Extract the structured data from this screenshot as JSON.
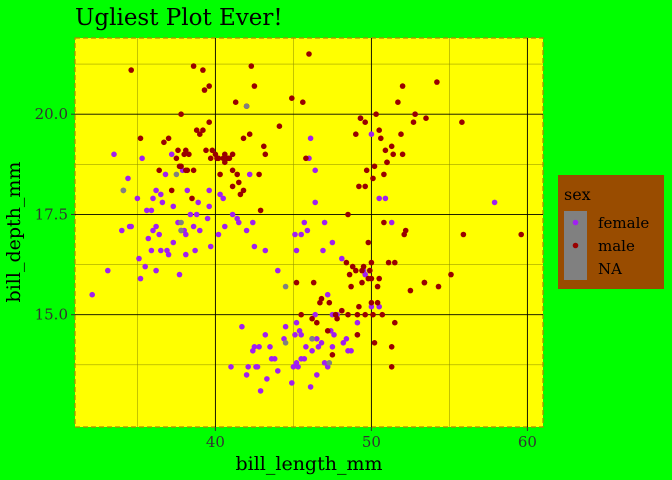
{
  "chart_data": {
    "type": "scatter",
    "title": "Ugliest Plot Ever!",
    "xlabel": "bill_length_mm",
    "ylabel": "bill_depth_mm",
    "xlim": [
      31,
      61
    ],
    "ylim": [
      12.2,
      21.9
    ],
    "x_ticks": [
      40,
      50,
      60
    ],
    "x_tick_labels": [
      "40",
      "50",
      "60"
    ],
    "y_ticks": [
      15.0,
      17.5,
      20.0
    ],
    "y_tick_labels": [
      "15.0",
      "17.5",
      "20.0"
    ],
    "grid": true,
    "legend": {
      "title": "sex",
      "placement": "right"
    },
    "colors": {
      "page_background": "#00ff00",
      "panel_background": "#ffff00",
      "panel_border": "#b08a00",
      "legend_background": "#994c00",
      "legend_key_background": "#808080",
      "grid_major": "#000000",
      "grid_minor": "#8a8a00"
    },
    "series": [
      {
        "name": "female",
        "color": "#a020f0",
        "points": [
          [
            32.1,
            15.5
          ],
          [
            33.1,
            16.1
          ],
          [
            33.5,
            19.0
          ],
          [
            34.0,
            17.1
          ],
          [
            34.1,
            18.1
          ],
          [
            34.4,
            18.4
          ],
          [
            34.5,
            17.2
          ],
          [
            34.6,
            17.2
          ],
          [
            35.0,
            17.9
          ],
          [
            35.1,
            16.4
          ],
          [
            35.2,
            15.9
          ],
          [
            35.3,
            18.9
          ],
          [
            35.5,
            16.2
          ],
          [
            35.6,
            17.6
          ],
          [
            35.7,
            16.9
          ],
          [
            35.9,
            16.6
          ],
          [
            35.9,
            17.6
          ],
          [
            36.0,
            17.1
          ],
          [
            36.0,
            17.9
          ],
          [
            36.2,
            16.1
          ],
          [
            36.2,
            17.2
          ],
          [
            36.2,
            18.1
          ],
          [
            36.4,
            17.0
          ],
          [
            36.5,
            16.6
          ],
          [
            36.5,
            18.0
          ],
          [
            36.6,
            17.8
          ],
          [
            36.8,
            18.5
          ],
          [
            36.9,
            16.6
          ],
          [
            37.0,
            16.5
          ],
          [
            37.2,
            19.0
          ],
          [
            37.3,
            16.8
          ],
          [
            37.3,
            17.7
          ],
          [
            37.6,
            17.3
          ],
          [
            37.7,
            16.0
          ],
          [
            37.8,
            17.1
          ],
          [
            37.9,
            18.6
          ],
          [
            38.0,
            17.1
          ],
          [
            38.1,
            16.5
          ],
          [
            38.1,
            17.0
          ],
          [
            38.2,
            18.1
          ],
          [
            38.4,
            17.5
          ],
          [
            38.6,
            17.2
          ],
          [
            38.7,
            16.6
          ],
          [
            38.8,
            17.5
          ],
          [
            38.9,
            17.8
          ],
          [
            39.0,
            17.1
          ],
          [
            39.5,
            17.4
          ],
          [
            39.6,
            17.7
          ],
          [
            39.6,
            18.1
          ],
          [
            39.7,
            16.7
          ],
          [
            40.2,
            17.0
          ],
          [
            40.3,
            18.0
          ],
          [
            40.5,
            17.9
          ],
          [
            40.6,
            17.2
          ],
          [
            41.1,
            17.5
          ],
          [
            41.4,
            17.4
          ],
          [
            41.5,
            17.3
          ],
          [
            42.0,
            17.1
          ],
          [
            42.2,
            18.5
          ],
          [
            42.4,
            17.3
          ],
          [
            42.5,
            16.7
          ],
          [
            42.8,
            14.2
          ],
          [
            41.0,
            13.7
          ],
          [
            41.7,
            14.7
          ],
          [
            42.0,
            13.5
          ],
          [
            42.1,
            13.7
          ],
          [
            42.4,
            14.1
          ],
          [
            42.5,
            14.2
          ],
          [
            42.6,
            13.7
          ],
          [
            42.7,
            13.7
          ],
          [
            42.9,
            13.1
          ],
          [
            43.2,
            14.5
          ],
          [
            43.3,
            13.4
          ],
          [
            43.5,
            14.2
          ],
          [
            43.6,
            13.9
          ],
          [
            43.8,
            13.9
          ],
          [
            44.0,
            13.6
          ],
          [
            44.4,
            14.4
          ],
          [
            44.5,
            14.7
          ],
          [
            44.9,
            13.3
          ],
          [
            45.0,
            13.7
          ],
          [
            45.1,
            14.5
          ],
          [
            45.2,
            13.8
          ],
          [
            45.2,
            14.8
          ],
          [
            45.3,
            13.7
          ],
          [
            45.4,
            14.6
          ],
          [
            45.5,
            13.9
          ],
          [
            45.5,
            14.5
          ],
          [
            45.7,
            13.9
          ],
          [
            45.8,
            14.2
          ],
          [
            46.1,
            13.2
          ],
          [
            46.2,
            14.1
          ],
          [
            46.2,
            14.4
          ],
          [
            46.4,
            15.0
          ],
          [
            46.5,
            13.5
          ],
          [
            46.5,
            14.4
          ],
          [
            46.6,
            14.2
          ],
          [
            46.8,
            14.3
          ],
          [
            47.0,
            13.8
          ],
          [
            47.2,
            13.7
          ],
          [
            47.2,
            15.5
          ],
          [
            47.4,
            14.6
          ],
          [
            47.5,
            14.2
          ],
          [
            47.5,
            15.0
          ],
          [
            47.6,
            14.5
          ],
          [
            47.8,
            15.0
          ],
          [
            48.1,
            15.1
          ],
          [
            48.2,
            14.3
          ],
          [
            48.4,
            14.4
          ],
          [
            48.5,
            14.1
          ],
          [
            48.7,
            14.1
          ],
          [
            49.1,
            14.5
          ],
          [
            49.1,
            14.8
          ],
          [
            49.5,
            16.1
          ],
          [
            49.6,
            16.0
          ],
          [
            49.9,
            16.1
          ],
          [
            50.0,
            15.2
          ],
          [
            50.5,
            15.2
          ],
          [
            44.0,
            16.1
          ],
          [
            45.1,
            17.0
          ],
          [
            45.5,
            17.0
          ],
          [
            46.4,
            17.8
          ],
          [
            46.9,
            16.6
          ],
          [
            47.0,
            17.3
          ],
          [
            47.5,
            16.8
          ],
          [
            48.1,
            16.4
          ],
          [
            49.3,
            19.9
          ],
          [
            50.0,
            19.5
          ],
          [
            50.5,
            17.9
          ],
          [
            50.9,
            17.9
          ],
          [
            51.3,
            17.3
          ],
          [
            52.8,
            20.0
          ],
          [
            46.0,
            18.9
          ],
          [
            45.7,
            17.3
          ],
          [
            45.9,
            17.1
          ],
          [
            46.4,
            18.6
          ],
          [
            43.2,
            16.6
          ],
          [
            57.9,
            17.8
          ],
          [
            46.1,
            19.4
          ],
          [
            45.2,
            16.6
          ]
        ]
      },
      {
        "name": "male",
        "color": "#990000",
        "points": [
          [
            34.6,
            21.1
          ],
          [
            35.2,
            19.4
          ],
          [
            36.4,
            18.6
          ],
          [
            37.0,
            19.4
          ],
          [
            37.5,
            18.9
          ],
          [
            37.8,
            20.0
          ],
          [
            38.0,
            19.0
          ],
          [
            38.1,
            19.1
          ],
          [
            38.2,
            18.6
          ],
          [
            38.3,
            19.0
          ],
          [
            38.8,
            19.6
          ],
          [
            39.0,
            19.5
          ],
          [
            39.2,
            19.6
          ],
          [
            39.3,
            20.6
          ],
          [
            39.4,
            19.1
          ],
          [
            39.6,
            19.8
          ],
          [
            39.7,
            18.9
          ],
          [
            40.0,
            19.0
          ],
          [
            40.2,
            18.9
          ],
          [
            40.3,
            18.5
          ],
          [
            40.6,
            18.8
          ],
          [
            40.8,
            18.9
          ],
          [
            41.1,
            19.0
          ],
          [
            41.1,
            18.2
          ],
          [
            41.3,
            20.3
          ],
          [
            41.5,
            18.3
          ],
          [
            41.8,
            19.4
          ],
          [
            42.0,
            20.2
          ],
          [
            42.2,
            19.5
          ],
          [
            42.3,
            21.2
          ],
          [
            42.5,
            20.7
          ],
          [
            42.8,
            18.5
          ],
          [
            42.9,
            17.6
          ],
          [
            43.1,
            19.2
          ],
          [
            43.2,
            19.0
          ],
          [
            44.1,
            19.7
          ],
          [
            44.9,
            20.4
          ],
          [
            45.6,
            20.3
          ],
          [
            45.8,
            18.9
          ],
          [
            46.0,
            21.5
          ],
          [
            37.6,
            19.1
          ],
          [
            37.8,
            18.7
          ],
          [
            38.5,
            17.9
          ],
          [
            38.6,
            21.2
          ],
          [
            39.2,
            21.1
          ],
          [
            39.6,
            20.7
          ],
          [
            40.1,
            18.9
          ],
          [
            40.5,
            18.9
          ],
          [
            40.9,
            18.9
          ],
          [
            41.1,
            18.6
          ],
          [
            41.4,
            18.5
          ],
          [
            41.6,
            18.0
          ],
          [
            41.8,
            18.1
          ],
          [
            36.7,
            19.3
          ],
          [
            37.2,
            18.1
          ],
          [
            37.7,
            18.7
          ],
          [
            38.1,
            18.6
          ],
          [
            38.6,
            18.6
          ],
          [
            39.8,
            19.1
          ],
          [
            40.6,
            19.0
          ],
          [
            48.7,
            15.7
          ],
          [
            49.0,
            16.1
          ],
          [
            49.2,
            15.2
          ],
          [
            49.5,
            16.2
          ],
          [
            49.8,
            16.8
          ],
          [
            50.0,
            16.3
          ],
          [
            50.1,
            15.0
          ],
          [
            50.2,
            14.3
          ],
          [
            50.4,
            15.3
          ],
          [
            50.5,
            15.9
          ],
          [
            50.8,
            17.3
          ],
          [
            51.1,
            16.3
          ],
          [
            51.3,
            14.2
          ],
          [
            51.5,
            16.3
          ],
          [
            52.1,
            17.0
          ],
          [
            52.2,
            17.1
          ],
          [
            52.5,
            15.6
          ],
          [
            53.4,
            15.8
          ],
          [
            54.3,
            15.7
          ],
          [
            55.1,
            16.0
          ],
          [
            55.9,
            17.0
          ],
          [
            59.6,
            17.0
          ],
          [
            48.4,
            16.3
          ],
          [
            48.8,
            16.2
          ],
          [
            49.1,
            15.0
          ],
          [
            49.4,
            15.8
          ],
          [
            49.6,
            15.0
          ],
          [
            49.8,
            15.9
          ],
          [
            50.0,
            15.9
          ],
          [
            50.4,
            15.7
          ],
          [
            50.7,
            15.0
          ],
          [
            50.9,
            19.1
          ],
          [
            51.0,
            18.8
          ],
          [
            51.3,
            19.2
          ],
          [
            51.4,
            19.0
          ],
          [
            51.7,
            20.3
          ],
          [
            51.9,
            19.5
          ],
          [
            52.0,
            19.0
          ],
          [
            52.7,
            19.8
          ],
          [
            53.5,
            19.9
          ],
          [
            54.2,
            20.8
          ],
          [
            55.8,
            19.8
          ],
          [
            49.0,
            19.5
          ],
          [
            49.2,
            18.2
          ],
          [
            49.6,
            18.2
          ],
          [
            49.7,
            18.6
          ],
          [
            50.2,
            18.7
          ],
          [
            50.3,
            20.0
          ],
          [
            50.5,
            19.6
          ],
          [
            50.8,
            18.5
          ],
          [
            51.0,
            18.8
          ],
          [
            52.0,
            20.7
          ],
          [
            50.6,
            19.4
          ],
          [
            49.3,
            19.9
          ],
          [
            48.5,
            17.5
          ],
          [
            49.6,
            19.8
          ],
          [
            50.1,
            18.4
          ],
          [
            52.8,
            20.0
          ],
          [
            46.3,
            15.8
          ],
          [
            46.7,
            15.3
          ],
          [
            47.3,
            15.3
          ],
          [
            47.5,
            14.0
          ],
          [
            47.7,
            15.0
          ],
          [
            48.1,
            15.1
          ],
          [
            48.5,
            15.0
          ],
          [
            48.6,
            16.0
          ],
          [
            49.1,
            14.5
          ],
          [
            49.4,
            16.1
          ],
          [
            49.9,
            16.1
          ],
          [
            50.0,
            15.3
          ],
          [
            51.3,
            13.7
          ],
          [
            51.5,
            14.8
          ],
          [
            53.4,
            15.8
          ],
          [
            45.2,
            15.8
          ],
          [
            45.5,
            15.0
          ],
          [
            46.2,
            14.9
          ],
          [
            46.5,
            14.8
          ],
          [
            46.8,
            15.4
          ],
          [
            47.2,
            14.6
          ],
          [
            47.8,
            14.9
          ]
        ]
      },
      {
        "name": "NA",
        "color": "#808080",
        "points": [
          [
            34.1,
            18.1
          ],
          [
            37.8,
            17.1
          ],
          [
            37.8,
            17.3
          ],
          [
            42.0,
            20.2
          ],
          [
            37.5,
            18.5
          ],
          [
            44.5,
            15.7
          ],
          [
            44.5,
            14.3
          ],
          [
            46.2,
            14.4
          ],
          [
            47.3,
            13.8
          ]
        ]
      }
    ]
  }
}
